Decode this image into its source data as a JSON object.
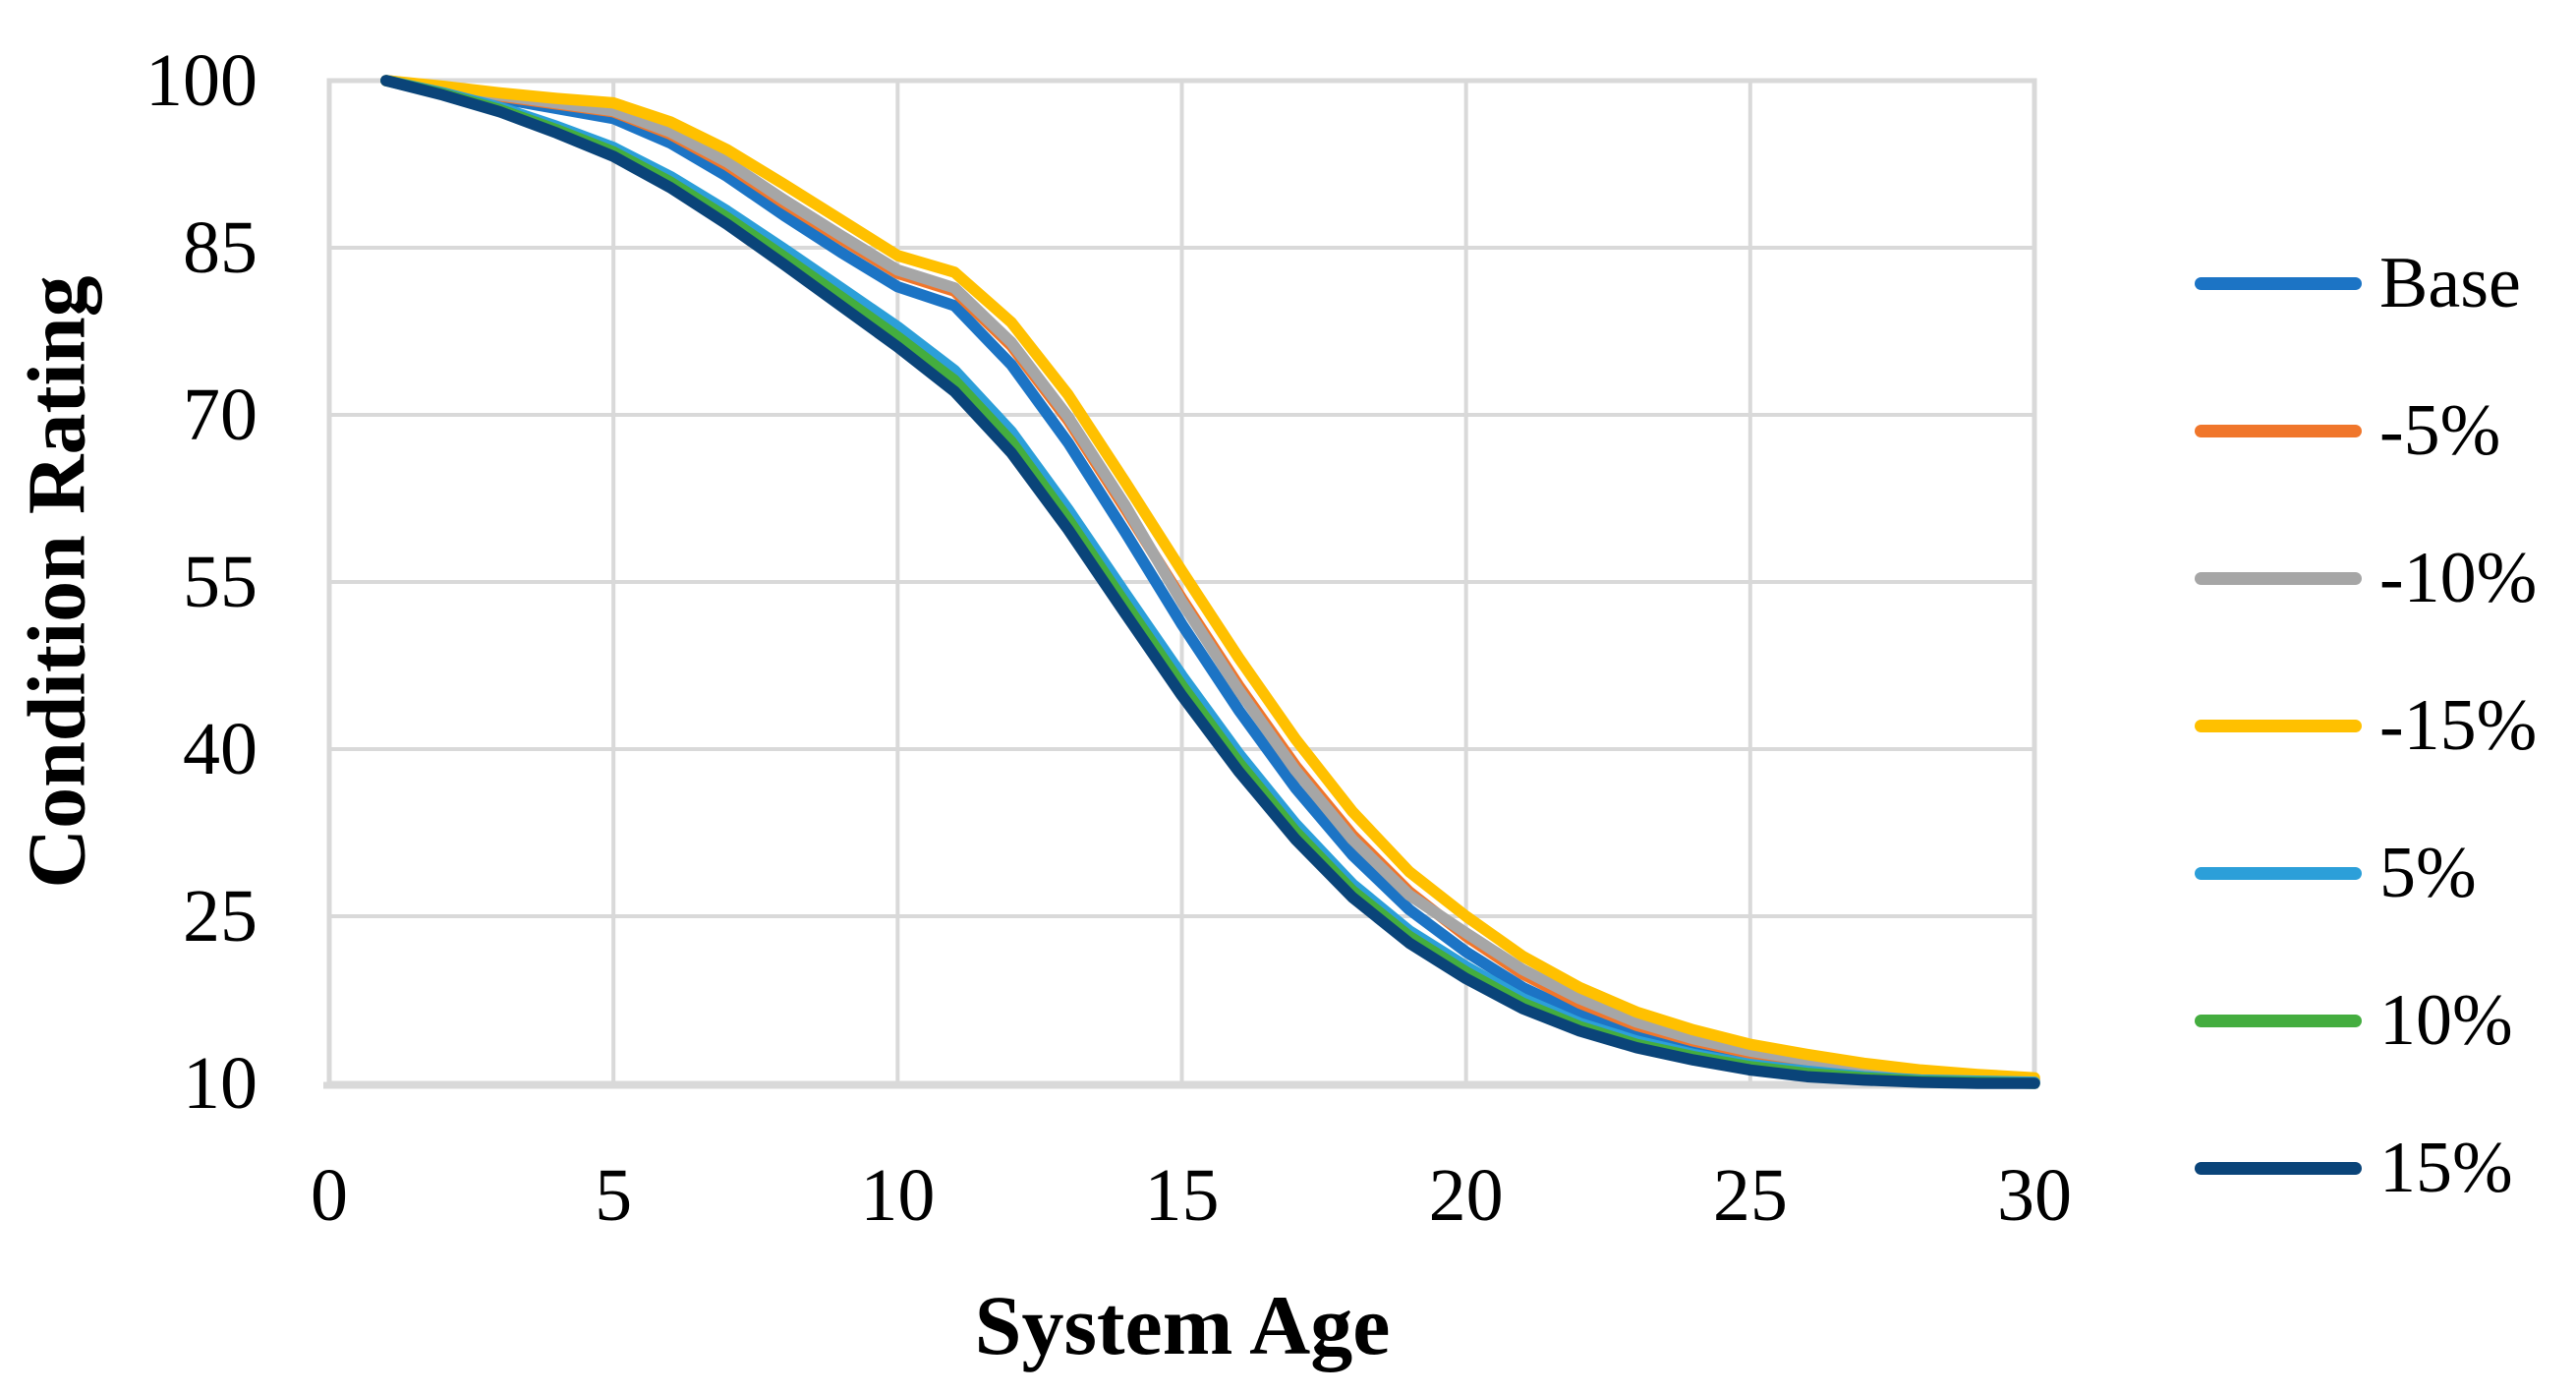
{
  "figure": {
    "background": "#ffffff",
    "text_color": "#000000",
    "gridline_color": "#d9d9d9"
  },
  "chart_data": {
    "type": "line",
    "title": "",
    "xlabel": "System Age",
    "ylabel": "Condition Rating",
    "xlim": [
      0,
      30
    ],
    "ylim": [
      10,
      100
    ],
    "x_ticks": [
      0,
      5,
      10,
      15,
      20,
      25,
      30
    ],
    "y_ticks": [
      10,
      25,
      40,
      55,
      70,
      85,
      100
    ],
    "grid": true,
    "legend_position": "right",
    "x": [
      1,
      2,
      3,
      4,
      5,
      6,
      7,
      8,
      9,
      10,
      11,
      12,
      13,
      14,
      15,
      16,
      17,
      18,
      19,
      20,
      21,
      22,
      23,
      24,
      25,
      26,
      27,
      28,
      29,
      30
    ],
    "series": [
      {
        "name": "Base",
        "color": "#1c74c5",
        "values": [
          100,
          99.2,
          98.4,
          97.5,
          96.6,
          94.4,
          91.4,
          87.9,
          84.6,
          81.5,
          79.8,
          74.5,
          67.5,
          59.5,
          51.2,
          43.5,
          36.5,
          30.5,
          25.6,
          21.8,
          18.6,
          16.2,
          14.4,
          13.1,
          12.2,
          11.5,
          11.0,
          10.6,
          10.4,
          10.2
        ]
      },
      {
        "name": "-5%",
        "color": "#f0762b",
        "values": [
          100,
          99.3,
          98.6,
          97.9,
          97.2,
          95.2,
          92.4,
          89.0,
          85.8,
          82.7,
          81.1,
          76.2,
          69.5,
          61.6,
          53.5,
          45.7,
          38.5,
          32.3,
          27.2,
          23.2,
          19.8,
          17.2,
          15.2,
          13.8,
          12.7,
          11.9,
          11.3,
          10.8,
          10.5,
          10.3
        ]
      },
      {
        "name": "-10%",
        "color": "#a6a6a6",
        "values": [
          100,
          99.4,
          98.7,
          98.0,
          97.3,
          95.4,
          92.7,
          89.3,
          86.1,
          83.0,
          81.4,
          76.5,
          69.8,
          61.9,
          53.2,
          45.3,
          38.1,
          31.9,
          26.9,
          23.5,
          20.2,
          17.6,
          15.5,
          14.0,
          12.9,
          12.1,
          11.4,
          10.9,
          10.6,
          10.4
        ]
      },
      {
        "name": "-15%",
        "color": "#ffc000",
        "values": [
          100,
          99.5,
          98.9,
          98.4,
          98.0,
          96.3,
          93.8,
          90.7,
          87.5,
          84.3,
          82.8,
          78.3,
          71.8,
          64.0,
          56.0,
          48.2,
          40.9,
          34.4,
          29.0,
          25.0,
          21.4,
          18.6,
          16.4,
          14.8,
          13.5,
          12.6,
          11.8,
          11.2,
          10.8,
          10.5
        ]
      },
      {
        "name": "5%",
        "color": "#2c9fd9",
        "values": [
          100,
          98.9,
          97.6,
          95.9,
          94.0,
          91.4,
          88.3,
          84.9,
          81.4,
          77.9,
          74.0,
          68.5,
          61.5,
          54.0,
          46.6,
          39.6,
          33.3,
          27.9,
          23.7,
          20.5,
          17.6,
          15.4,
          13.8,
          12.6,
          11.7,
          11.1,
          10.6,
          10.3,
          10.2,
          10.1
        ]
      },
      {
        "name": "10%",
        "color": "#44ad3f",
        "values": [
          100,
          98.8,
          97.4,
          95.6,
          93.6,
          90.9,
          87.7,
          84.2,
          80.6,
          77.0,
          73.1,
          67.6,
          60.6,
          53.1,
          45.7,
          38.8,
          32.6,
          27.3,
          23.2,
          20.0,
          17.2,
          15.1,
          13.5,
          12.4,
          11.5,
          10.9,
          10.5,
          10.2,
          10.1,
          10.0
        ]
      },
      {
        "name": "15%",
        "color": "#0a4479",
        "values": [
          100,
          98.7,
          97.2,
          95.3,
          93.2,
          90.4,
          87.1,
          83.5,
          79.8,
          76.1,
          72.1,
          66.6,
          59.7,
          52.2,
          44.8,
          38.0,
          31.9,
          26.7,
          22.6,
          19.4,
          16.7,
          14.7,
          13.2,
          12.1,
          11.2,
          10.6,
          10.3,
          10.1,
          10.0,
          10.0
        ]
      }
    ]
  }
}
